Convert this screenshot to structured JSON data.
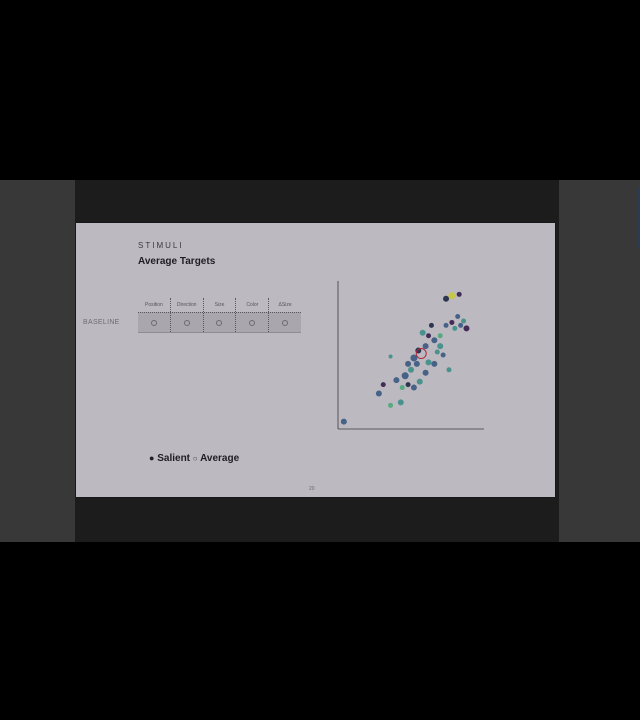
{
  "slide": {
    "kicker": "STIMULI",
    "title": "Average Targets",
    "row_label": "BASELINE",
    "columns": [
      "Position",
      "Direction",
      "Size",
      "Color",
      "ΔSize"
    ],
    "legend": {
      "salient_marker": "●",
      "salient": "Salient",
      "average_marker": "○",
      "average": "Average"
    },
    "page_number": "20"
  },
  "colors": {
    "slide_bg": "#bdb9c0",
    "dark_navy": "#1f2a4a",
    "blue": "#3c5a82",
    "teal": "#3f8e8a",
    "green": "#4ea87a",
    "purple": "#3a1f4f",
    "yellow": "#c8c83c",
    "target_ring": "#b0263a"
  },
  "chart_data": {
    "type": "scatter",
    "xlim": [
      0,
      100
    ],
    "ylim": [
      0,
      100
    ],
    "grid": false,
    "points": [
      {
        "x": 4,
        "y": 5,
        "c": "blue",
        "r": 3
      },
      {
        "x": 36,
        "y": 49,
        "c": "teal",
        "r": 2
      },
      {
        "x": 31,
        "y": 30,
        "c": "purple",
        "r": 2.5
      },
      {
        "x": 28,
        "y": 24,
        "c": "blue",
        "r": 3
      },
      {
        "x": 36,
        "y": 16,
        "c": "green",
        "r": 2.5
      },
      {
        "x": 43,
        "y": 18,
        "c": "teal",
        "r": 3
      },
      {
        "x": 40,
        "y": 33,
        "c": "blue",
        "r": 3
      },
      {
        "x": 46,
        "y": 36,
        "c": "blue",
        "r": 3.5
      },
      {
        "x": 48,
        "y": 44,
        "c": "blue",
        "r": 3
      },
      {
        "x": 50,
        "y": 40,
        "c": "teal",
        "r": 3
      },
      {
        "x": 52,
        "y": 48,
        "c": "blue",
        "r": 3.5
      },
      {
        "x": 55,
        "y": 53,
        "c": "dark_navy",
        "r": 3
      },
      {
        "x": 54,
        "y": 44,
        "c": "blue",
        "r": 3
      },
      {
        "x": 60,
        "y": 56,
        "c": "blue",
        "r": 3
      },
      {
        "x": 62,
        "y": 45,
        "c": "teal",
        "r": 3
      },
      {
        "x": 60,
        "y": 38,
        "c": "blue",
        "r": 3
      },
      {
        "x": 58,
        "y": 65,
        "c": "teal",
        "r": 3
      },
      {
        "x": 62,
        "y": 63,
        "c": "purple",
        "r": 2.5
      },
      {
        "x": 66,
        "y": 60,
        "c": "blue",
        "r": 3
      },
      {
        "x": 64,
        "y": 70,
        "c": "dark_navy",
        "r": 2.5
      },
      {
        "x": 68,
        "y": 52,
        "c": "teal",
        "r": 2.5
      },
      {
        "x": 70,
        "y": 63,
        "c": "green",
        "r": 2.5
      },
      {
        "x": 72,
        "y": 50,
        "c": "blue",
        "r": 2.5
      },
      {
        "x": 74,
        "y": 70,
        "c": "blue",
        "r": 2.5
      },
      {
        "x": 76,
        "y": 40,
        "c": "teal",
        "r": 2.5
      },
      {
        "x": 78,
        "y": 72,
        "c": "purple",
        "r": 2.5
      },
      {
        "x": 80,
        "y": 68,
        "c": "teal",
        "r": 2.5
      },
      {
        "x": 82,
        "y": 76,
        "c": "blue",
        "r": 2.5
      },
      {
        "x": 84,
        "y": 70,
        "c": "blue",
        "r": 2.5
      },
      {
        "x": 88,
        "y": 68,
        "c": "purple",
        "r": 3
      },
      {
        "x": 86,
        "y": 73,
        "c": "teal",
        "r": 2.5
      },
      {
        "x": 74,
        "y": 88,
        "c": "dark_navy",
        "r": 3
      },
      {
        "x": 78,
        "y": 90,
        "c": "yellow",
        "r": 3.5
      },
      {
        "x": 83,
        "y": 91,
        "c": "purple",
        "r": 2.5
      },
      {
        "x": 52,
        "y": 28,
        "c": "blue",
        "r": 3
      },
      {
        "x": 56,
        "y": 32,
        "c": "teal",
        "r": 3
      },
      {
        "x": 48,
        "y": 30,
        "c": "dark_navy",
        "r": 2.5
      },
      {
        "x": 44,
        "y": 28,
        "c": "green",
        "r": 2.5
      },
      {
        "x": 66,
        "y": 44,
        "c": "blue",
        "r": 3
      },
      {
        "x": 70,
        "y": 56,
        "c": "teal",
        "r": 3
      }
    ],
    "highlighted": {
      "x": 57,
      "y": 51,
      "r": 5,
      "c": "target_ring"
    }
  }
}
